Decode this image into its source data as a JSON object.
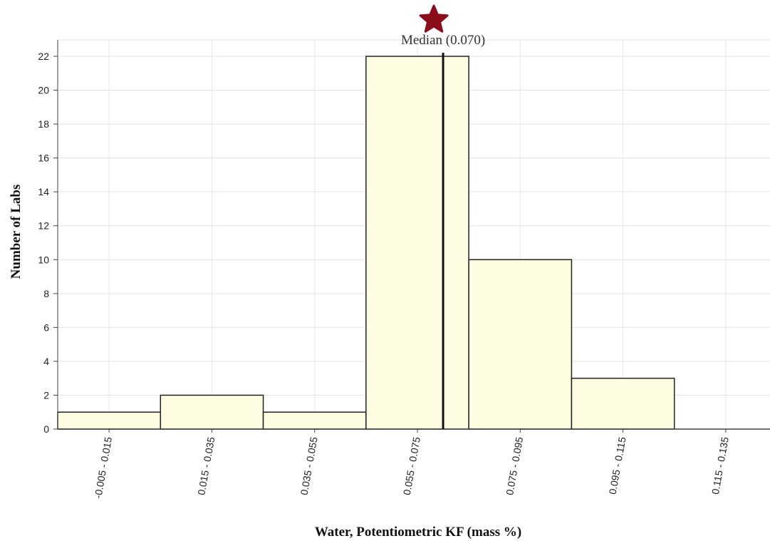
{
  "chart_data": {
    "type": "bar",
    "title": "",
    "xlabel": "Water, Potentiometric KF (mass %)",
    "ylabel": "Number of Labs",
    "categories": [
      "-0.005 - 0.015",
      "0.015 - 0.035",
      "0.035 - 0.055",
      "0.055 - 0.075",
      "0.075 - 0.095",
      "0.095 - 0.115",
      "0.115 - 0.135"
    ],
    "values": [
      1,
      2,
      1,
      22,
      10,
      3,
      0
    ],
    "ylim": [
      0,
      22
    ],
    "yticks": [
      0,
      2,
      4,
      6,
      8,
      10,
      12,
      14,
      16,
      18,
      20,
      22
    ],
    "grid": true,
    "bar_color": "#fefde2",
    "bar_edge_color": "#222222",
    "median": {
      "label": "Median (0.070)",
      "value": 0.07,
      "marker": "star-icon",
      "marker_color": "#8b0d1c"
    }
  }
}
